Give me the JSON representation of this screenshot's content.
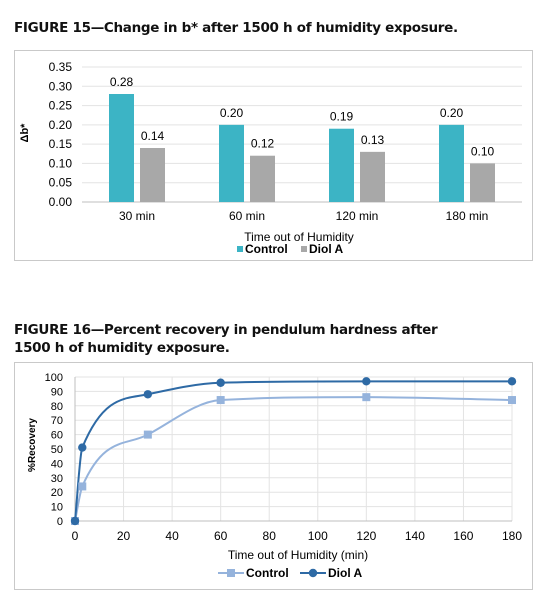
{
  "figures": {
    "fig15_title": "FIGURE 15—Change in b* after 1500 h of humidity exposure.",
    "fig16_title": "FIGURE 16—Percent recovery in pendulum hardness after 1500 h of humidity exposure."
  },
  "chart_data": [
    {
      "type": "bar",
      "categories": [
        "30 min",
        "60 min",
        "120 min",
        "180 min"
      ],
      "series": [
        {
          "name": "Control",
          "values": [
            0.28,
            0.2,
            0.19,
            0.2
          ],
          "labels": [
            "0.28",
            "0.20",
            "0.19",
            "0.20"
          ],
          "color": "#3cb4c5"
        },
        {
          "name": "Diol A",
          "values": [
            0.14,
            0.12,
            0.13,
            0.1
          ],
          "labels": [
            "0.14",
            "0.12",
            "0.13",
            "0.10"
          ],
          "color": "#a8a8a8"
        }
      ],
      "xlabel": "Time out of Humidity",
      "ylabel": "Δb*",
      "ylim": [
        0,
        0.35
      ],
      "yticks": [
        "0.00",
        "0.05",
        "0.10",
        "0.15",
        "0.20",
        "0.25",
        "0.30",
        "0.35"
      ],
      "grid": true,
      "legend": "bottom"
    },
    {
      "type": "line",
      "series": [
        {
          "name": "Control",
          "marker": "square",
          "color": "#95b3dc",
          "x": [
            0,
            3,
            30,
            60,
            120,
            180
          ],
          "y": [
            0,
            24,
            60,
            84,
            86,
            84
          ]
        },
        {
          "name": "Diol A",
          "marker": "circle",
          "color": "#2e6aa5",
          "x": [
            0,
            3,
            30,
            60,
            120,
            180
          ],
          "y": [
            0,
            51,
            88,
            96,
            97,
            97
          ]
        }
      ],
      "xlabel": "Time out of Humidity (min)",
      "ylabel": "%Recovery",
      "xlim": [
        0,
        180
      ],
      "ylim": [
        0,
        100
      ],
      "xticks": [
        "0",
        "20",
        "40",
        "60",
        "80",
        "100",
        "120",
        "140",
        "160",
        "180"
      ],
      "yticks": [
        "0",
        "10",
        "20",
        "30",
        "40",
        "50",
        "60",
        "70",
        "80",
        "90",
        "100"
      ],
      "grid": true,
      "legend": "bottom"
    }
  ]
}
